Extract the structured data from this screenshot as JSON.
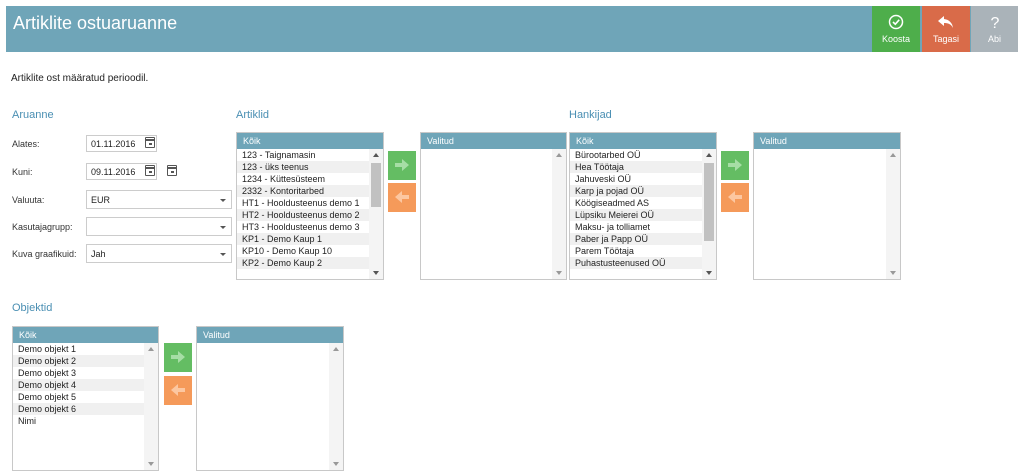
{
  "header": {
    "title": "Artiklite ostuaruanne",
    "buttons": {
      "koosta": "Koosta",
      "tagasi": "Tagasi",
      "abi": "Abi"
    },
    "icons": {
      "koosta": "check-circle-icon",
      "tagasi": "reply-arrow-icon",
      "abi": "question-icon"
    },
    "colors": {
      "bar": "#6fa5b8",
      "koosta": "#4eae4b",
      "tagasi": "#d96b49",
      "abi": "#aab3b9"
    }
  },
  "intro": "Artiklite ost määratud perioodil.",
  "aruanne": {
    "title": "Aruanne",
    "alates": {
      "label": "Alates:",
      "value": "01.11.2016"
    },
    "kuni": {
      "label": "Kuni:",
      "value": "09.11.2016"
    },
    "valuuta": {
      "label": "Valuuta:",
      "value": "EUR"
    },
    "kasutajagrupp": {
      "label": "Kasutajagrupp:",
      "value": ""
    },
    "kuva_graafikuid": {
      "label": "Kuva graafikuid:",
      "value": "Jah"
    }
  },
  "artiklid": {
    "title": "Artiklid",
    "all_header": "Kõik",
    "selected_header": "Valitud",
    "items": [
      "123 - Taignamasin",
      "123 - üks teenus",
      "1234 - Küttesüsteem",
      "2332 - Kontoritarbed",
      "HT1 - Hooldusteenus demo 1",
      "HT2 - Hooldusteenus demo 2",
      "HT3 - Hooldusteenus demo 3",
      "KP1 - Demo Kaup 1",
      "KP10 - Demo Kaup 10",
      "KP2 - Demo Kaup 2"
    ],
    "selected": []
  },
  "hankijad": {
    "title": "Hankijad",
    "all_header": "Kõik",
    "selected_header": "Valitud",
    "items": [
      "Bürootarbed OÜ",
      "Hea Töötaja",
      "Jahuveski OÜ",
      "Karp ja pojad OÜ",
      "Köögiseadmed AS",
      "Lüpsiku Meierei OÜ",
      "Maksu- ja tolliamet",
      "Paber ja Papp OÜ",
      "Parem Töötaja",
      "Puhastusteenused OÜ"
    ],
    "selected": []
  },
  "objektid": {
    "title": "Objektid",
    "all_header": "Kõik",
    "selected_header": "Valitud",
    "items": [
      "Demo objekt 1",
      "Demo objekt 2",
      "Demo objekt 3",
      "Demo objekt 4",
      "Demo objekt 5",
      "Demo objekt 6",
      "Nimi"
    ],
    "selected": []
  },
  "transfer_icons": {
    "add": "arrow-right-icon",
    "remove": "arrow-left-icon"
  }
}
